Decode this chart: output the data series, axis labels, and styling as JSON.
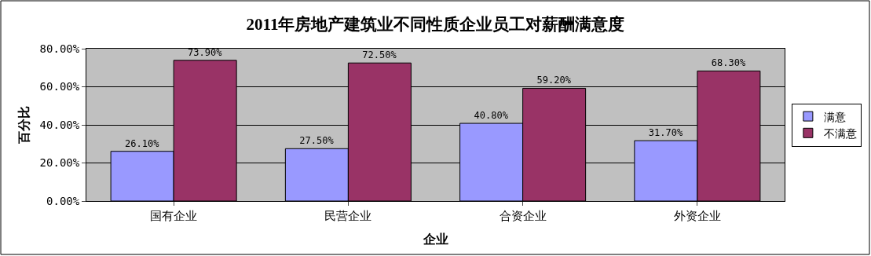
{
  "chart_data": {
    "type": "bar",
    "title": "2011年房地产建筑业不同性质企业员工对薪酬满意度",
    "xlabel": "企业",
    "ylabel": "百分比",
    "categories": [
      "国有企业",
      "民营企业",
      "合资企业",
      "外资企业"
    ],
    "series": [
      {
        "name": "满意",
        "color": "#9999ff",
        "values": [
          26.1,
          27.5,
          40.8,
          31.7
        ],
        "value_labels": [
          "26.10%",
          "27.50%",
          "40.80%",
          "31.70%"
        ]
      },
      {
        "name": "不满意",
        "color": "#993366",
        "values": [
          73.9,
          72.5,
          59.2,
          68.3
        ],
        "value_labels": [
          "73.90%",
          "72.50%",
          "59.20%",
          "68.30%"
        ]
      }
    ],
    "ylim": [
      0,
      80
    ],
    "yticks": [
      {
        "value": 0,
        "label": "0.00%"
      },
      {
        "value": 20,
        "label": "20.00%"
      },
      {
        "value": 40,
        "label": "40.00%"
      },
      {
        "value": 60,
        "label": "60.00%"
      },
      {
        "value": 80,
        "label": "80.00%"
      }
    ],
    "grid": "y",
    "legend": "right"
  }
}
